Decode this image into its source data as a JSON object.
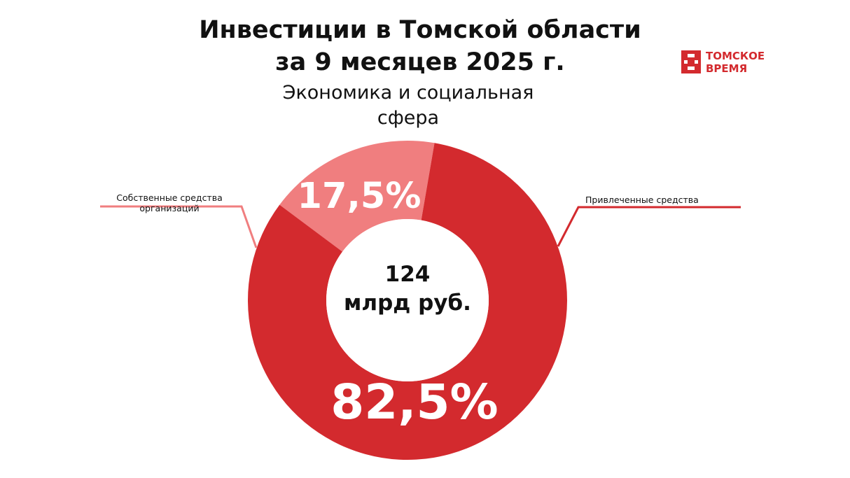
{
  "header": {
    "title": "Инвестиции в Томской области\nза 9 месяцев 2025 г.",
    "subtitle": "Экономика и социальная\nсфера"
  },
  "brand": {
    "name": "ТОМСКОЕ\nВРЕМЯ",
    "color": "#d32a2e"
  },
  "chart_data": {
    "type": "donut",
    "center_label": "124\nмлрд руб.",
    "slices": [
      {
        "label": "Собственные средства\nорганизаций",
        "value": 17.5,
        "value_label": "17,5%",
        "color": "#f07e7f"
      },
      {
        "label": "Привлеченные средства",
        "value": 82.5,
        "value_label": "82,5%",
        "color": "#d32a2e"
      }
    ]
  }
}
